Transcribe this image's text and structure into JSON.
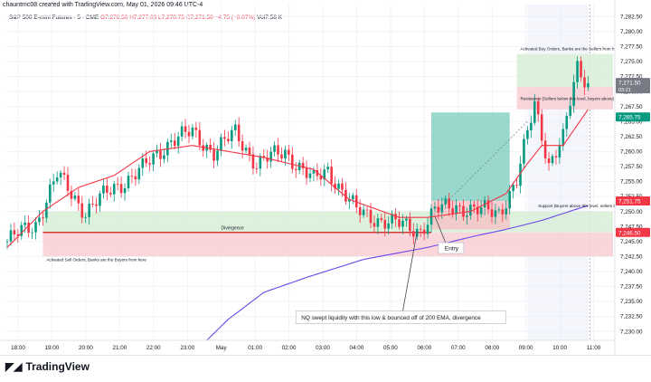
{
  "header": {
    "credit": "chauntmc08 created with TradingView.com, May 01, 2026 09:46 UTC-4"
  },
  "legend": {
    "symbol": "S&P 500 E-mini Futures · 5 · CME",
    "ohlc": "O7,276.50  H7,277.00  L7,270.75  C7,271.50  −4.75 (−0.07%)",
    "volume": "Vol7.56 K"
  },
  "footer": {
    "logo_text": "TradingView"
  },
  "colors": {
    "up": "#089981",
    "down": "#f23645",
    "ema_fast": "#f23645",
    "ema_slow": "#6a48e8",
    "zone_green": "#d7eed7",
    "zone_red": "#f9cfd3",
    "box_teal": "#8fd3c7",
    "axis_text": "#131722",
    "grid": "#f0f3fa"
  },
  "chart_data": {
    "type": "candlestick",
    "x_ticks": [
      "18:00",
      "19:00",
      "20:00",
      "21:00",
      "22:00",
      "23:00",
      "May",
      "01:00",
      "02:00",
      "03:00",
      "04:00",
      "05:00",
      "06:00",
      "07:00",
      "08:00",
      "09:00",
      "10:00",
      "11:00"
    ],
    "y_ticks": [
      "7,282.50",
      "7,280.00",
      "7,277.50",
      "7,275.00",
      "7,272.50",
      "7,270.00",
      "7,267.50",
      "7,265.00",
      "7,262.50",
      "7,260.00",
      "7,257.50",
      "7,255.00",
      "7,252.50",
      "7,250.00",
      "7,247.50",
      "7,245.00",
      "7,242.50",
      "7,240.00",
      "7,237.50",
      "7,235.00",
      "7,232.50",
      "7,230.00"
    ],
    "ylim": [
      7228.5,
      7284.5
    ],
    "price_labels": [
      {
        "value": 7271.5,
        "text": "7,271.50",
        "sub": "03:21",
        "color": "#787b86"
      },
      {
        "value": 7265.75,
        "text": "7,265.75",
        "color": "#089981"
      },
      {
        "value": 7251.75,
        "text": "7,251.75",
        "color": "#f23645"
      },
      {
        "value": 7246.5,
        "text": "7,246.50",
        "color": "#f23645"
      }
    ],
    "annotations": {
      "activated_buy": "Activated Buy Orders, Banks are the Sellers from here",
      "resistance": "Resistance  (Sellers below this level, buyers above)",
      "support": "Support  (Buyers above this level, sellers below)",
      "divergence": "Divergence",
      "activated_sell": "Activated Sell Orders, Banks are the Buyers from here",
      "entry": "Entry",
      "nq_note": "NQ swept liquidity with this low & bounced off of 200 EMA, divergence"
    },
    "series": [
      {
        "kind": "ohlc",
        "anchors": [
          [
            0,
            7245
          ],
          [
            8,
            7248
          ],
          [
            14,
            7256
          ],
          [
            22,
            7250
          ],
          [
            30,
            7254
          ],
          [
            38,
            7257
          ],
          [
            46,
            7262
          ],
          [
            52,
            7263
          ],
          [
            58,
            7260
          ],
          [
            64,
            7263
          ],
          [
            70,
            7258
          ],
          [
            78,
            7260
          ],
          [
            86,
            7255
          ],
          [
            90,
            7257
          ],
          [
            98,
            7250
          ],
          [
            108,
            7248
          ],
          [
            116,
            7247
          ],
          [
            120,
            7250
          ],
          [
            126,
            7251
          ],
          [
            132,
            7250
          ],
          [
            138,
            7250
          ],
          [
            143,
            7255
          ],
          [
            148,
            7268
          ],
          [
            152,
            7258
          ],
          [
            156,
            7262
          ],
          [
            160,
            7274
          ],
          [
            163,
            7271.5
          ]
        ]
      },
      {
        "kind": "ema_fast",
        "anchors": [
          [
            0,
            7244
          ],
          [
            10,
            7250
          ],
          [
            20,
            7254
          ],
          [
            30,
            7256
          ],
          [
            40,
            7260
          ],
          [
            52,
            7261
          ],
          [
            62,
            7260
          ],
          [
            72,
            7259
          ],
          [
            86,
            7257
          ],
          [
            96,
            7252
          ],
          [
            110,
            7249
          ],
          [
            118,
            7249
          ],
          [
            130,
            7250
          ],
          [
            140,
            7253
          ],
          [
            146,
            7258
          ],
          [
            150,
            7261
          ],
          [
            156,
            7261
          ],
          [
            163,
            7267
          ]
        ]
      },
      {
        "kind": "ema_slow",
        "anchors": [
          [
            56,
            7228.5
          ],
          [
            62,
            7232
          ],
          [
            72,
            7236.5
          ],
          [
            84,
            7239
          ],
          [
            100,
            7242
          ],
          [
            118,
            7244
          ],
          [
            132,
            7246
          ],
          [
            140,
            7247
          ],
          [
            150,
            7248.5
          ],
          [
            163,
            7251
          ]
        ]
      }
    ],
    "zones": {
      "buy_activated": [
        7270.75,
        7276.25
      ],
      "resistance": [
        7267,
        7270.75
      ],
      "support": [
        7246.5,
        7250
      ],
      "sell_activated": [
        7242.5,
        7246.5
      ],
      "entry_box_tp": [
        7251.75,
        7266.5
      ],
      "entry_box_sl": [
        7247.0,
        7251.75
      ],
      "divergence_line": 7246.5
    }
  }
}
